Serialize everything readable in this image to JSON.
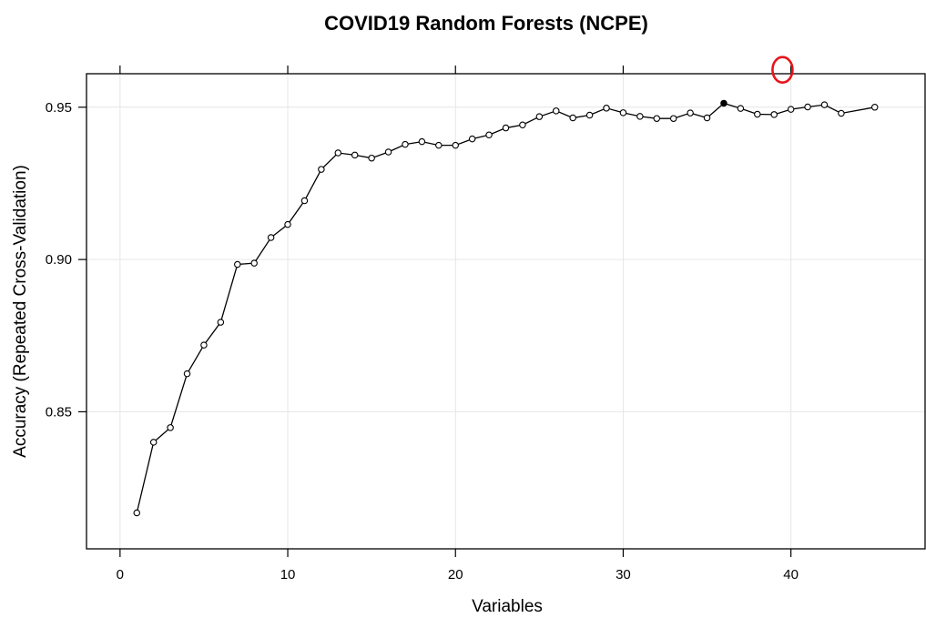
{
  "chart_data": {
    "type": "line",
    "title": "COVID19 Random Forests (NCPE)",
    "xlabel": "Variables",
    "ylabel": "Accuracy (Repeated Cross-Validation)",
    "xlim": [
      -2,
      48
    ],
    "ylim": [
      0.805,
      0.961
    ],
    "x_ticks": [
      0,
      10,
      20,
      30,
      40
    ],
    "x_tick_labels": [
      "0",
      "10",
      "20",
      "30",
      "40"
    ],
    "y_ticks": [
      0.85,
      0.9,
      0.95
    ],
    "y_tick_labels": [
      "0.85",
      "0.90",
      "0.95"
    ],
    "grid": true,
    "series": [
      {
        "x": [
          1,
          2,
          3,
          4,
          5,
          6,
          7,
          8,
          9,
          10,
          11,
          12,
          13,
          14,
          15,
          16,
          17,
          18,
          19,
          20,
          21,
          22,
          23,
          24,
          25,
          26,
          27,
          28,
          29,
          30,
          31,
          32,
          33,
          34,
          35,
          36,
          37,
          38,
          39,
          40,
          41,
          42,
          43,
          45
        ],
        "y": [
          0.8168,
          0.84,
          0.8448,
          0.8625,
          0.8719,
          0.8794,
          0.8984,
          0.8988,
          0.9072,
          0.9115,
          0.9193,
          0.9296,
          0.935,
          0.9343,
          0.9333,
          0.9353,
          0.9378,
          0.9387,
          0.9375,
          0.9375,
          0.9396,
          0.9409,
          0.9432,
          0.9442,
          0.9469,
          0.9488,
          0.9465,
          0.9474,
          0.9497,
          0.9482,
          0.947,
          0.9463,
          0.9463,
          0.9481,
          0.9465,
          0.9513,
          0.9496,
          0.9477,
          0.9476,
          0.9493,
          0.9501,
          0.9508,
          0.948,
          0.95
        ]
      }
    ],
    "highlight_point": {
      "x": 36,
      "y": 0.9513
    },
    "annotation": {
      "shape": "ellipse",
      "color": "#e8141b",
      "x": 39.5,
      "y": 0.9623
    },
    "colors": {
      "line": "#000000",
      "grid": "#e6e6e6",
      "annotation": "#e8141b"
    }
  }
}
